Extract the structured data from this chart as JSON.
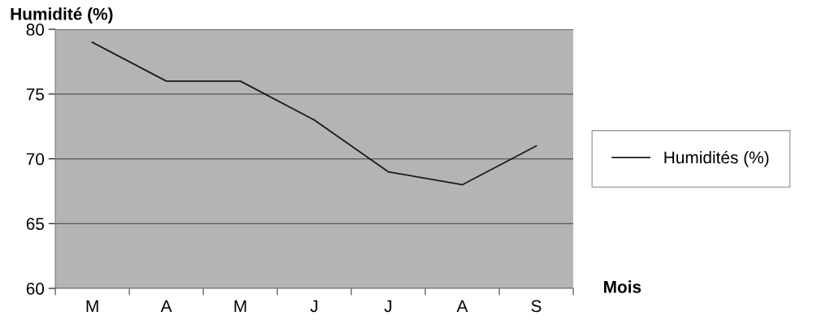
{
  "chart_data": {
    "type": "line",
    "ylabel": "Humidité (%)",
    "xlabel": "Mois",
    "categories": [
      "M",
      "A",
      "M",
      "J",
      "J",
      "A",
      "S"
    ],
    "series": [
      {
        "name": "Humidités (%)",
        "color": "#1a1a1a",
        "values": [
          79,
          76,
          76,
          73,
          69,
          68,
          71
        ]
      }
    ],
    "ylim": [
      60,
      80
    ],
    "yticks": [
      60,
      65,
      70,
      75,
      80
    ],
    "grid": "y",
    "legend": "right",
    "marker": "none",
    "line_style": "solid"
  }
}
